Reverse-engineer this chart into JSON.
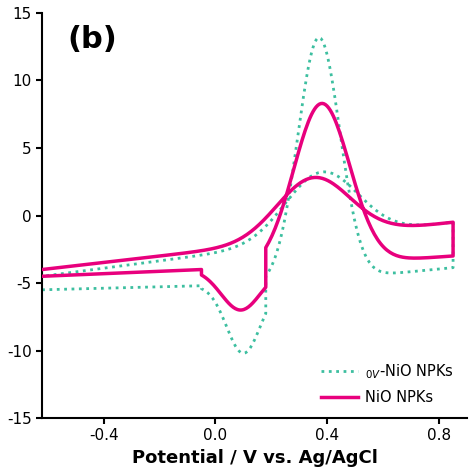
{
  "xlabel": "Potential / V vs. Ag/AgCl",
  "panel_label": "(b)",
  "ylim": [
    -15,
    15
  ],
  "xlim": [
    -0.62,
    0.9
  ],
  "yticks": [
    -15,
    -10,
    -5,
    0,
    5,
    10,
    15
  ],
  "ytick_labels": [
    "-15",
    "-10",
    "-5",
    "0",
    "5",
    "10",
    "15"
  ],
  "xticks": [
    -0.4,
    0.0,
    0.4,
    0.8
  ],
  "nio_color": "#E8007D",
  "ov_color": "#3DBFA0",
  "legend_labels": [
    "NiO NPKs",
    "$_{0V}$-NiO NPKs"
  ],
  "background_color": "#ffffff"
}
